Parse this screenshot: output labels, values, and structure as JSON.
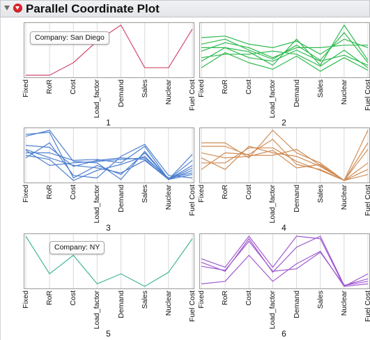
{
  "title": "Parallel Coordinate Plot",
  "chart_data": [
    {
      "type": "line",
      "panel_label": "1",
      "color": "#d1486a",
      "x": [
        "Fixed",
        "RoR",
        "Cost",
        "Load_factor",
        "Demand",
        "Sales",
        "Nuclear",
        "Fuel Cost"
      ],
      "ylim": [
        0,
        1
      ],
      "series": [
        {
          "values": [
            0.0,
            0.0,
            0.25,
            0.68,
            1.0,
            0.15,
            0.15,
            0.92
          ]
        }
      ],
      "annotation": "Company: San Diego"
    },
    {
      "type": "line",
      "panel_label": "2",
      "color": "#2dba4e",
      "x": [
        "Fixed",
        "RoR",
        "Cost",
        "Load_factor",
        "Demand",
        "Sales",
        "Nuclear",
        "Fuel Cost"
      ],
      "ylim": [
        0,
        1
      ],
      "series": [
        {
          "values": [
            0.55,
            0.55,
            0.47,
            0.2,
            0.72,
            0.2,
            1.0,
            0.3
          ]
        },
        {
          "values": [
            0.62,
            0.72,
            0.5,
            0.32,
            0.6,
            0.3,
            0.85,
            0.25
          ]
        },
        {
          "values": [
            0.48,
            0.65,
            0.55,
            0.35,
            0.55,
            0.55,
            0.6,
            0.6
          ]
        },
        {
          "values": [
            0.75,
            0.78,
            0.62,
            0.55,
            0.68,
            0.42,
            0.72,
            0.55
          ]
        },
        {
          "values": [
            0.35,
            0.42,
            0.42,
            0.48,
            0.42,
            0.18,
            0.5,
            0.15
          ]
        },
        {
          "values": [
            0.28,
            0.55,
            0.35,
            0.28,
            0.5,
            0.28,
            0.4,
            0.2
          ]
        },
        {
          "values": [
            0.15,
            0.45,
            0.25,
            0.12,
            0.38,
            0.08,
            0.35,
            0.1
          ]
        }
      ]
    },
    {
      "type": "line",
      "panel_label": "3",
      "color": "#4d7fd0",
      "x": [
        "Fixed",
        "RoR",
        "Cost",
        "Load_factor",
        "Demand",
        "Sales",
        "Nuclear",
        "Fuel Cost"
      ],
      "ylim": [
        0,
        1
      ],
      "series": [
        {
          "values": [
            0.88,
            1.0,
            0.38,
            0.35,
            0.02,
            0.58,
            0.02,
            0.52
          ]
        },
        {
          "values": [
            0.92,
            0.96,
            0.05,
            0.3,
            0.12,
            0.55,
            0.02,
            0.2
          ]
        },
        {
          "values": [
            0.7,
            0.66,
            0.28,
            0.4,
            0.45,
            0.42,
            0.02,
            0.3
          ]
        },
        {
          "values": [
            0.55,
            0.55,
            0.4,
            0.42,
            0.35,
            0.68,
            0.02,
            0.4
          ]
        },
        {
          "values": [
            0.6,
            0.3,
            0.35,
            0.38,
            0.42,
            0.45,
            0.05,
            0.15
          ]
        },
        {
          "values": [
            0.45,
            0.75,
            0.1,
            0.05,
            0.48,
            0.72,
            0.1,
            0.05
          ]
        },
        {
          "values": [
            0.5,
            0.42,
            0.0,
            0.2,
            0.32,
            0.48,
            0.02,
            0.12
          ]
        },
        {
          "values": [
            0.62,
            0.45,
            0.3,
            0.25,
            0.15,
            0.4,
            0.02,
            0.25
          ]
        }
      ]
    },
    {
      "type": "line",
      "panel_label": "4",
      "color": "#d08c55",
      "x": [
        "Fixed",
        "RoR",
        "Cost",
        "Load_factor",
        "Demand",
        "Sales",
        "Nuclear",
        "Fuel Cost"
      ],
      "ylim": [
        0,
        1
      ],
      "series": [
        {
          "values": [
            0.75,
            0.75,
            0.45,
            1.0,
            0.55,
            0.35,
            0.0,
            1.0
          ]
        },
        {
          "values": [
            0.35,
            0.35,
            0.65,
            0.65,
            0.38,
            0.2,
            0.0,
            0.75
          ]
        },
        {
          "values": [
            0.68,
            0.68,
            0.5,
            0.5,
            0.62,
            0.3,
            0.0,
            0.62
          ]
        },
        {
          "values": [
            0.45,
            0.22,
            0.68,
            0.55,
            0.48,
            0.28,
            0.0,
            0.35
          ]
        },
        {
          "values": [
            0.22,
            0.55,
            0.52,
            0.82,
            0.32,
            0.22,
            0.0,
            0.22
          ]
        },
        {
          "values": [
            0.55,
            0.45,
            0.48,
            0.6,
            0.25,
            0.32,
            0.0,
            0.12
          ]
        }
      ]
    },
    {
      "type": "line",
      "panel_label": "5",
      "color": "#45b79a",
      "x": [
        "Fixed",
        "RoR",
        "Cost",
        "Load_factor",
        "Demand",
        "Sales",
        "Nuclear",
        "Fuel Cost"
      ],
      "ylim": [
        0,
        1
      ],
      "series": [
        {
          "values": [
            1.0,
            0.25,
            0.62,
            0.05,
            0.25,
            0.0,
            0.28,
            0.95
          ]
        }
      ],
      "annotation": "Company: NY"
    },
    {
      "type": "line",
      "panel_label": "6",
      "color": "#a05ad0",
      "x": [
        "Fixed",
        "RoR",
        "Cost",
        "Load_factor",
        "Demand",
        "Sales",
        "Nuclear",
        "Fuel Cost"
      ],
      "ylim": [
        0,
        1
      ],
      "series": [
        {
          "values": [
            0.55,
            0.38,
            1.0,
            0.38,
            1.0,
            0.95,
            0.0,
            0.25
          ]
        },
        {
          "values": [
            0.48,
            0.3,
            0.95,
            0.28,
            0.78,
            1.0,
            0.02,
            0.15
          ]
        },
        {
          "values": [
            0.05,
            0.1,
            0.62,
            0.1,
            0.45,
            0.7,
            0.0,
            0.05
          ]
        },
        {
          "values": [
            0.4,
            0.32,
            0.9,
            0.3,
            0.35,
            0.68,
            0.02,
            0.1
          ]
        }
      ]
    }
  ]
}
